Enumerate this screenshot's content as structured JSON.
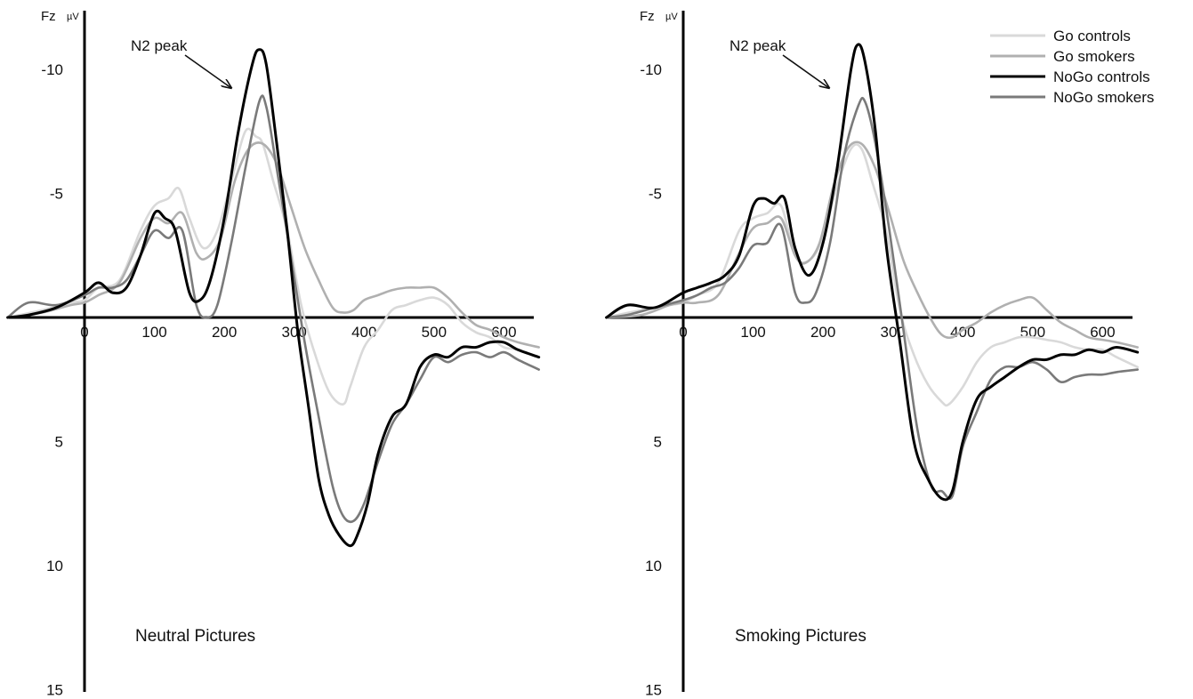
{
  "figure": {
    "legend_position": "top-right",
    "legend": [
      {
        "label": "Go controls",
        "color": "#d9d9d9"
      },
      {
        "label": "Go smokers",
        "color": "#b0b0b0"
      },
      {
        "label": "NoGo controls",
        "color": "#000000"
      },
      {
        "label": "NoGo smokers",
        "color": "#7a7a7a"
      }
    ]
  },
  "chart_data": [
    {
      "type": "line",
      "title": "Neutral Pictures",
      "ylabel": "Fz",
      "yunit": "µV",
      "y_inverted": true,
      "xlim": [
        -110,
        650
      ],
      "ylim": [
        15,
        -12
      ],
      "xticks": [
        0,
        100,
        200,
        300,
        400,
        500,
        600
      ],
      "yticks": [
        -10,
        -5,
        5,
        10,
        15
      ],
      "grid": false,
      "annotation": {
        "text": "N2 peak",
        "x": 250,
        "y": -11
      },
      "series": [
        {
          "name": "Go controls",
          "color": "#d9d9d9",
          "x": [
            -110,
            -60,
            -20,
            0,
            20,
            50,
            80,
            100,
            120,
            135,
            150,
            170,
            190,
            210,
            230,
            245,
            255,
            270,
            290,
            310,
            330,
            350,
            370,
            380,
            400,
            420,
            440,
            460,
            480,
            500,
            520,
            540,
            560,
            580,
            600,
            620,
            650
          ],
          "y": [
            0,
            -0.3,
            -0.6,
            -0.7,
            -1.2,
            -1.5,
            -3.5,
            -4.5,
            -4.8,
            -5.2,
            -4.0,
            -2.8,
            -3.5,
            -5.5,
            -7.5,
            -7.3,
            -7.0,
            -5.5,
            -3.5,
            -0.5,
            1.5,
            3.0,
            3.5,
            2.8,
            1.2,
            0.5,
            -0.3,
            -0.5,
            -0.7,
            -0.8,
            -0.5,
            0.2,
            0.6,
            0.8,
            1.2,
            1.3,
            1.6
          ]
        },
        {
          "name": "Go smokers",
          "color": "#b0b0b0",
          "x": [
            -110,
            -60,
            -20,
            0,
            20,
            50,
            80,
            100,
            120,
            140,
            160,
            175,
            195,
            215,
            235,
            255,
            275,
            295,
            315,
            335,
            355,
            370,
            385,
            400,
            420,
            440,
            460,
            480,
            500,
            520,
            540,
            560,
            580,
            600,
            620,
            650
          ],
          "y": [
            0,
            -0.2,
            -0.5,
            -0.6,
            -0.9,
            -1.4,
            -3.2,
            -4.0,
            -3.8,
            -4.2,
            -2.6,
            -2.4,
            -3.2,
            -5.5,
            -6.8,
            -7.0,
            -6.2,
            -4.5,
            -2.8,
            -1.5,
            -0.4,
            -0.2,
            -0.3,
            -0.7,
            -0.9,
            -1.1,
            -1.2,
            -1.2,
            -1.2,
            -0.8,
            -0.2,
            0.3,
            0.5,
            0.8,
            1.0,
            1.2
          ]
        },
        {
          "name": "NoGo controls",
          "color": "#000000",
          "x": [
            -110,
            -80,
            -40,
            0,
            20,
            40,
            60,
            80,
            100,
            115,
            130,
            150,
            165,
            180,
            200,
            220,
            240,
            250,
            260,
            275,
            290,
            305,
            320,
            335,
            350,
            365,
            380,
            390,
            405,
            420,
            440,
            460,
            480,
            500,
            520,
            540,
            560,
            580,
            600,
            620,
            650
          ],
          "y": [
            0,
            -0.1,
            -0.4,
            -1.0,
            -1.4,
            -1.0,
            -1.2,
            -2.5,
            -4.2,
            -4.0,
            -3.5,
            -1.0,
            -0.7,
            -1.5,
            -4.0,
            -7.5,
            -10.2,
            -10.8,
            -10.2,
            -7.0,
            -3.5,
            0.5,
            3.5,
            6.5,
            8.0,
            8.8,
            9.2,
            8.8,
            7.5,
            5.5,
            4.0,
            3.5,
            2.0,
            1.5,
            1.6,
            1.2,
            1.2,
            1.0,
            1.0,
            1.3,
            1.6
          ]
        },
        {
          "name": "NoGo smokers",
          "color": "#7a7a7a",
          "x": [
            -110,
            -80,
            -40,
            0,
            20,
            40,
            60,
            80,
            100,
            120,
            140,
            160,
            175,
            190,
            210,
            230,
            250,
            260,
            275,
            295,
            315,
            335,
            355,
            370,
            385,
            400,
            420,
            440,
            460,
            480,
            500,
            520,
            540,
            560,
            580,
            600,
            620,
            650
          ],
          "y": [
            0,
            -0.6,
            -0.5,
            -0.9,
            -1.2,
            -1.2,
            -1.5,
            -2.5,
            -3.5,
            -3.2,
            -3.5,
            -0.5,
            0.0,
            -0.5,
            -3.0,
            -6.0,
            -8.7,
            -8.5,
            -6.0,
            -2.5,
            1.0,
            4.0,
            6.8,
            8.0,
            8.2,
            7.5,
            5.8,
            4.3,
            3.5,
            2.5,
            1.6,
            1.8,
            1.5,
            1.4,
            1.6,
            1.4,
            1.7,
            2.1
          ]
        }
      ]
    },
    {
      "type": "line",
      "title": "Smoking Pictures",
      "ylabel": "Fz",
      "yunit": "µV",
      "y_inverted": true,
      "xlim": [
        -110,
        650
      ],
      "ylim": [
        15,
        -12
      ],
      "xticks": [
        0,
        100,
        200,
        300,
        400,
        500,
        600
      ],
      "yticks": [
        -10,
        -5,
        5,
        10,
        15
      ],
      "grid": false,
      "annotation": {
        "text": "N2 peak",
        "x": 250,
        "y": -11
      },
      "series": [
        {
          "name": "Go controls",
          "color": "#d9d9d9",
          "x": [
            -110,
            -60,
            -20,
            0,
            20,
            50,
            80,
            100,
            120,
            140,
            160,
            180,
            200,
            220,
            240,
            255,
            270,
            290,
            310,
            330,
            350,
            370,
            380,
            400,
            420,
            440,
            460,
            480,
            500,
            520,
            540,
            560,
            580,
            600,
            620,
            650
          ],
          "y": [
            0,
            -0.3,
            -0.5,
            -0.6,
            -0.9,
            -1.4,
            -3.5,
            -4.0,
            -4.2,
            -4.5,
            -2.5,
            -2.3,
            -3.2,
            -5.3,
            -6.8,
            -6.8,
            -5.5,
            -3.5,
            -0.3,
            1.5,
            2.7,
            3.4,
            3.5,
            2.8,
            1.8,
            1.2,
            1.0,
            0.8,
            0.8,
            0.9,
            1.0,
            1.2,
            1.3,
            1.3,
            1.6,
            2.0
          ]
        },
        {
          "name": "Go smokers",
          "color": "#b0b0b0",
          "x": [
            -110,
            -60,
            -20,
            0,
            20,
            50,
            80,
            100,
            120,
            140,
            160,
            175,
            195,
            215,
            235,
            255,
            275,
            295,
            315,
            335,
            355,
            370,
            385,
            400,
            420,
            440,
            460,
            480,
            500,
            520,
            540,
            560,
            580,
            600,
            620,
            650
          ],
          "y": [
            0,
            -0.1,
            -0.5,
            -0.6,
            -0.6,
            -0.9,
            -2.6,
            -3.6,
            -3.8,
            -4.0,
            -2.5,
            -2.2,
            -3.0,
            -5.3,
            -6.8,
            -7.0,
            -6.0,
            -4.2,
            -2.3,
            -1.0,
            0.1,
            0.7,
            0.8,
            0.5,
            0.2,
            -0.2,
            -0.5,
            -0.7,
            -0.8,
            -0.3,
            0.2,
            0.5,
            0.8,
            0.9,
            1.0,
            1.2
          ]
        },
        {
          "name": "NoGo controls",
          "color": "#000000",
          "x": [
            -110,
            -80,
            -40,
            0,
            20,
            40,
            60,
            80,
            100,
            115,
            130,
            145,
            160,
            180,
            200,
            220,
            240,
            250,
            260,
            275,
            290,
            310,
            330,
            350,
            370,
            385,
            400,
            420,
            440,
            460,
            480,
            500,
            520,
            540,
            560,
            580,
            600,
            620,
            650
          ],
          "y": [
            0,
            -0.5,
            -0.4,
            -1.0,
            -1.2,
            -1.4,
            -1.7,
            -2.5,
            -4.5,
            -4.8,
            -4.6,
            -4.8,
            -2.8,
            -1.7,
            -3.0,
            -6.0,
            -10.0,
            -11.0,
            -10.3,
            -7.5,
            -3.0,
            1.0,
            5.0,
            6.5,
            7.3,
            7.0,
            5.0,
            3.3,
            2.8,
            2.4,
            2.0,
            1.7,
            1.7,
            1.5,
            1.5,
            1.3,
            1.4,
            1.2,
            1.4
          ]
        },
        {
          "name": "NoGo smokers",
          "color": "#7a7a7a",
          "x": [
            -110,
            -80,
            -40,
            0,
            20,
            40,
            60,
            80,
            100,
            120,
            140,
            160,
            175,
            190,
            210,
            230,
            250,
            260,
            275,
            295,
            315,
            335,
            355,
            370,
            385,
            400,
            420,
            440,
            460,
            480,
            500,
            520,
            540,
            560,
            580,
            600,
            620,
            650
          ],
          "y": [
            0,
            -0.1,
            -0.4,
            -0.7,
            -0.9,
            -1.2,
            -1.4,
            -2.0,
            -2.9,
            -3.0,
            -3.7,
            -1.0,
            -0.6,
            -1.0,
            -3.0,
            -6.5,
            -8.5,
            -8.7,
            -7.0,
            -3.5,
            0.5,
            4.5,
            6.8,
            7.0,
            7.2,
            5.2,
            3.8,
            2.5,
            2.0,
            2.0,
            1.8,
            2.1,
            2.6,
            2.4,
            2.3,
            2.3,
            2.2,
            2.1
          ]
        }
      ]
    }
  ]
}
